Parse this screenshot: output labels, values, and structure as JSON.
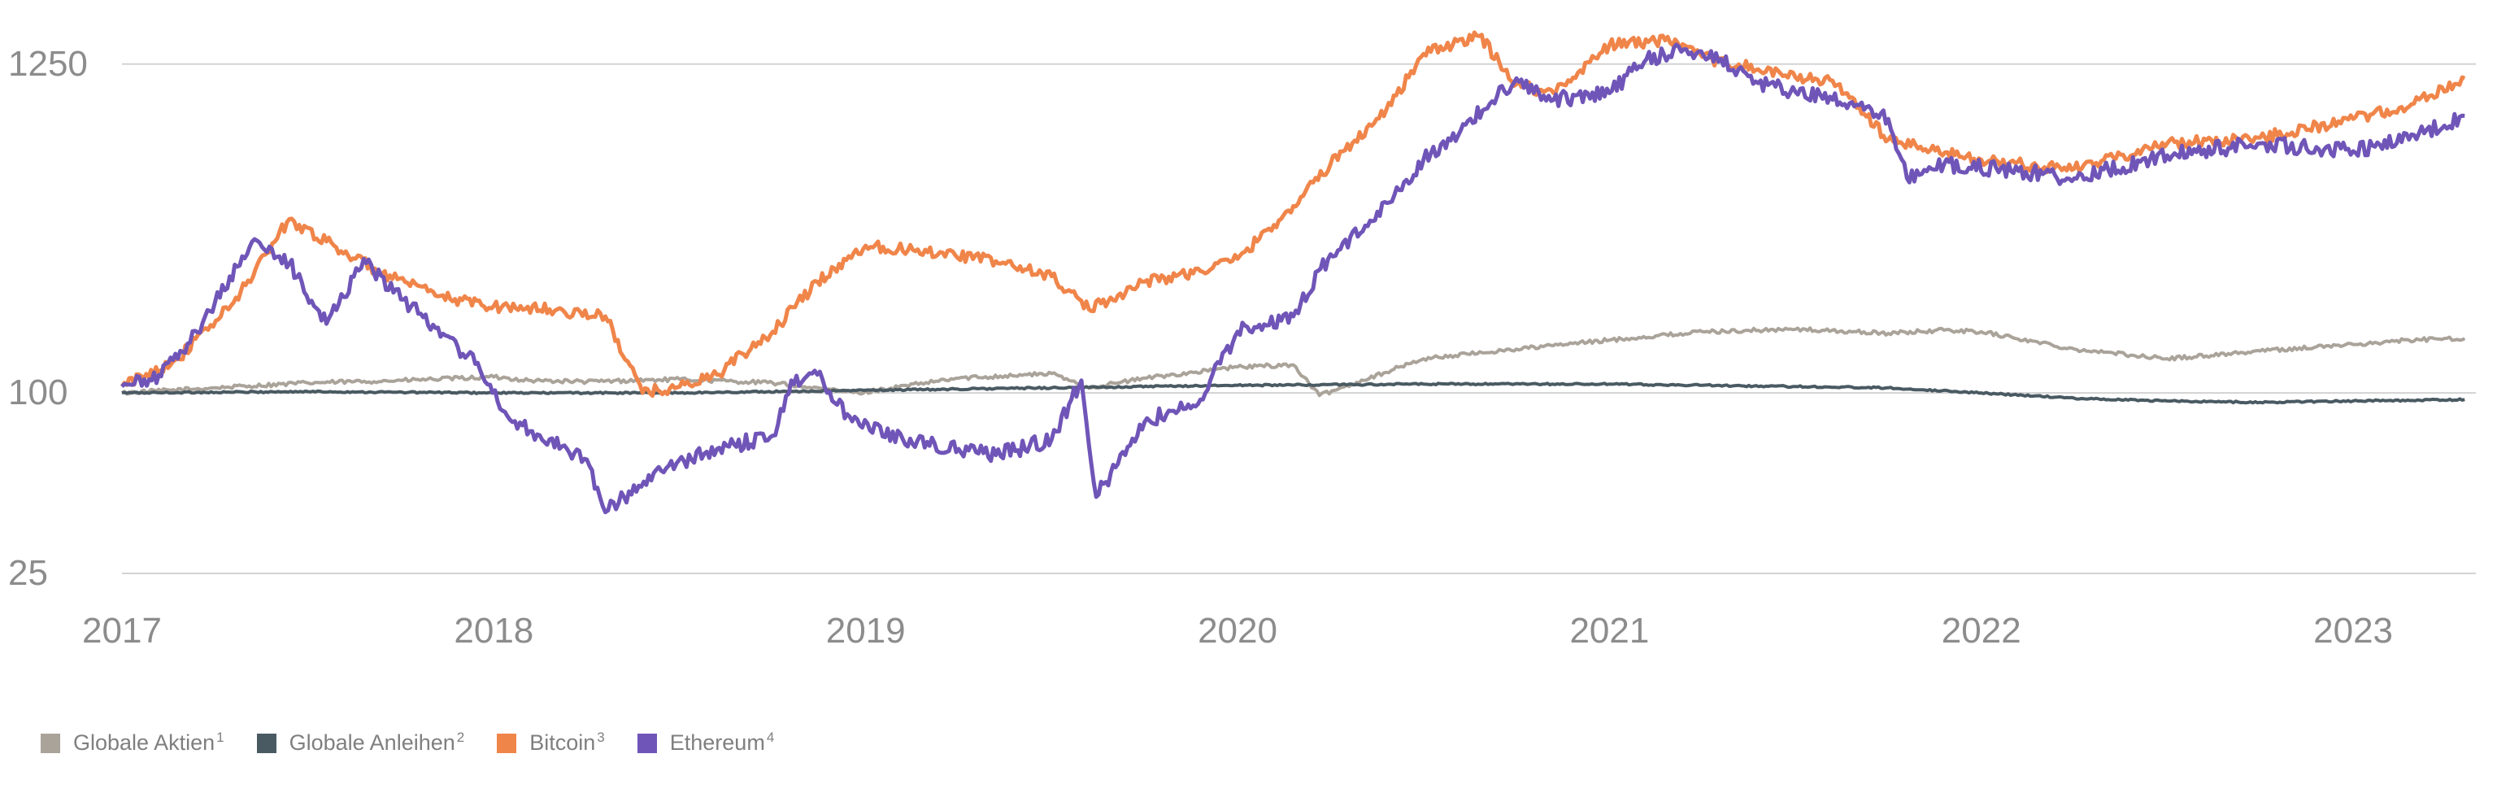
{
  "chart_data": {
    "type": "line",
    "title": "",
    "xlabel": "",
    "ylabel": "",
    "y_scale": "log",
    "ylim": [
      25,
      1450
    ],
    "xlim": [
      2017.0,
      2023.33
    ],
    "y_ticks": [
      25,
      100,
      1250
    ],
    "x_ticks": [
      2017,
      2018,
      2019,
      2020,
      2021,
      2022,
      2023
    ],
    "grid": true,
    "legend_position": "bottom-left",
    "colors": {
      "Globale Aktien": "#aaa39a",
      "Globale Anleihen": "#4a5a63",
      "Bitcoin": "#f0854a",
      "Ethereum": "#7055b8"
    },
    "series": [
      {
        "name": "Globale Aktien",
        "footnote": "1",
        "x": [
          2017.0,
          2017.25,
          2017.5,
          2017.75,
          2018.0,
          2018.1,
          2018.25,
          2018.5,
          2018.75,
          2018.98,
          2019.25,
          2019.5,
          2019.6,
          2019.75,
          2020.0,
          2020.15,
          2020.22,
          2020.5,
          2020.75,
          2021.0,
          2021.25,
          2021.5,
          2021.75,
          2021.9,
          2022.0,
          2022.25,
          2022.5,
          2022.75,
          2023.0,
          2023.15,
          2023.3
        ],
        "values": [
          100,
          104,
          108,
          110,
          113,
          110,
          109,
          111,
          108,
          100,
          112,
          116,
          104,
          112,
          122,
          124,
          98,
          130,
          140,
          150,
          160,
          163,
          158,
          162,
          160,
          140,
          130,
          138,
          145,
          150,
          152
        ]
      },
      {
        "name": "Globale Anleihen",
        "footnote": "2",
        "x": [
          2017.0,
          2017.5,
          2018.0,
          2018.5,
          2019.0,
          2019.5,
          2020.0,
          2020.5,
          2021.0,
          2021.25,
          2021.5,
          2021.75,
          2022.0,
          2022.25,
          2022.5,
          2022.75,
          2023.0,
          2023.3
        ],
        "values": [
          100,
          101,
          100,
          100,
          102,
          104,
          106,
          107,
          107,
          106,
          105,
          104,
          100,
          96,
          94,
          93,
          94,
          95
        ]
      },
      {
        "name": "Bitcoin",
        "footnote": "3",
        "x": [
          2017.0,
          2017.15,
          2017.3,
          2017.45,
          2017.55,
          2017.7,
          2017.85,
          2018.0,
          2018.15,
          2018.3,
          2018.4,
          2018.5,
          2018.6,
          2018.75,
          2018.87,
          2019.0,
          2019.2,
          2019.35,
          2019.5,
          2019.6,
          2019.75,
          2019.9,
          2020.0,
          2020.15,
          2020.25,
          2020.4,
          2020.5,
          2020.65,
          2020.75,
          2020.85,
          2021.0,
          2021.15,
          2021.25,
          2021.4,
          2021.5,
          2021.6,
          2021.75,
          2021.85,
          2022.0,
          2022.15,
          2022.25,
          2022.5,
          2022.75,
          2023.0,
          2023.15,
          2023.3
        ],
        "values": [
          105,
          130,
          200,
          380,
          320,
          250,
          210,
          195,
          190,
          180,
          100,
          105,
          115,
          160,
          235,
          310,
          295,
          275,
          245,
          190,
          235,
          255,
          280,
          420,
          580,
          880,
          1350,
          1550,
          1070,
          1000,
          1450,
          1500,
          1320,
          1200,
          1130,
          1100,
          700,
          650,
          600,
          570,
          560,
          680,
          710,
          820,
          900,
          1120
        ]
      },
      {
        "name": "Ethereum",
        "footnote": "4",
        "x": [
          2017.0,
          2017.08,
          2017.15,
          2017.25,
          2017.35,
          2017.45,
          2017.55,
          2017.65,
          2017.75,
          2017.85,
          2017.95,
          2018.05,
          2018.15,
          2018.25,
          2018.3,
          2018.35,
          2018.45,
          2018.6,
          2018.75,
          2018.8,
          2018.87,
          2018.95,
          2019.1,
          2019.25,
          2019.35,
          2019.5,
          2019.58,
          2019.62,
          2019.75,
          2019.9,
          2020.0,
          2020.15,
          2020.25,
          2020.35,
          2020.5,
          2020.6,
          2020.75,
          2020.85,
          2021.0,
          2021.1,
          2021.2,
          2021.3,
          2021.4,
          2021.5,
          2021.6,
          2021.75,
          2021.8,
          2021.9,
          2022.1,
          2022.25,
          2022.5,
          2022.75,
          2023.0,
          2023.15,
          2023.3
        ],
        "values": [
          105,
          110,
          130,
          200,
          320,
          270,
          170,
          280,
          205,
          165,
          125,
          80,
          70,
          60,
          40,
          45,
          55,
          65,
          72,
          110,
          115,
          85,
          70,
          65,
          62,
          70,
          110,
          45,
          80,
          95,
          160,
          180,
          290,
          360,
          600,
          750,
          1120,
          950,
          1000,
          1300,
          1400,
          1300,
          1080,
          1010,
          950,
          820,
          520,
          580,
          550,
          520,
          620,
          680,
          640,
          700,
          840
        ]
      }
    ]
  }
}
